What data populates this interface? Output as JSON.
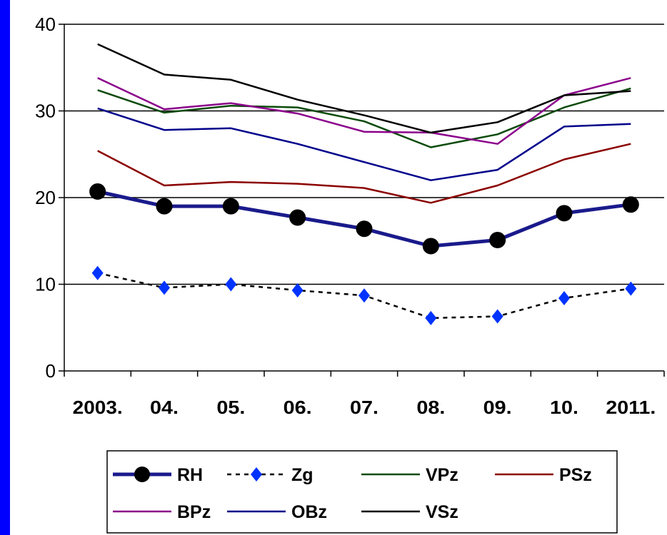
{
  "chart_data": {
    "type": "line",
    "title": "",
    "xlabel": "",
    "ylabel": "",
    "categories": [
      "2003.",
      "04.",
      "05.",
      "06.",
      "07.",
      "08.",
      "09.",
      "10.",
      "2011."
    ],
    "ylim": [
      0,
      40
    ],
    "yticks": [
      0,
      10,
      20,
      30,
      40
    ],
    "grid": "horizontal",
    "legend_position": "bottom",
    "series": [
      {
        "name": "RH",
        "color": "#1a1a8c",
        "style": "thick-marker",
        "values": [
          20.7,
          19.0,
          19.0,
          17.7,
          16.4,
          14.4,
          15.1,
          18.2,
          19.2
        ]
      },
      {
        "name": "Zg",
        "color": "#0033ff",
        "style": "dashed-diamond",
        "values": [
          11.3,
          9.6,
          10.0,
          9.3,
          8.7,
          6.1,
          6.3,
          8.4,
          9.5
        ]
      },
      {
        "name": "VPz",
        "color": "#0a4a0a",
        "style": "line",
        "values": [
          32.4,
          29.8,
          30.6,
          30.4,
          28.8,
          25.8,
          27.3,
          30.4,
          32.6
        ]
      },
      {
        "name": "PSz",
        "color": "#8b0000",
        "style": "line",
        "values": [
          25.4,
          21.4,
          21.8,
          21.6,
          21.1,
          19.4,
          21.4,
          24.4,
          26.2
        ]
      },
      {
        "name": "BPz",
        "color": "#8b008b",
        "style": "line",
        "values": [
          33.8,
          30.2,
          30.9,
          29.7,
          27.6,
          27.5,
          26.2,
          31.8,
          33.8
        ]
      },
      {
        "name": "OBz",
        "color": "#00008b",
        "style": "line",
        "values": [
          30.3,
          27.8,
          28.0,
          26.2,
          24.1,
          22.0,
          23.2,
          28.2,
          28.5
        ]
      },
      {
        "name": "VSz",
        "color": "#000000",
        "style": "line",
        "values": [
          37.7,
          34.2,
          33.6,
          31.3,
          29.5,
          27.5,
          28.7,
          31.8,
          32.3
        ]
      }
    ]
  }
}
